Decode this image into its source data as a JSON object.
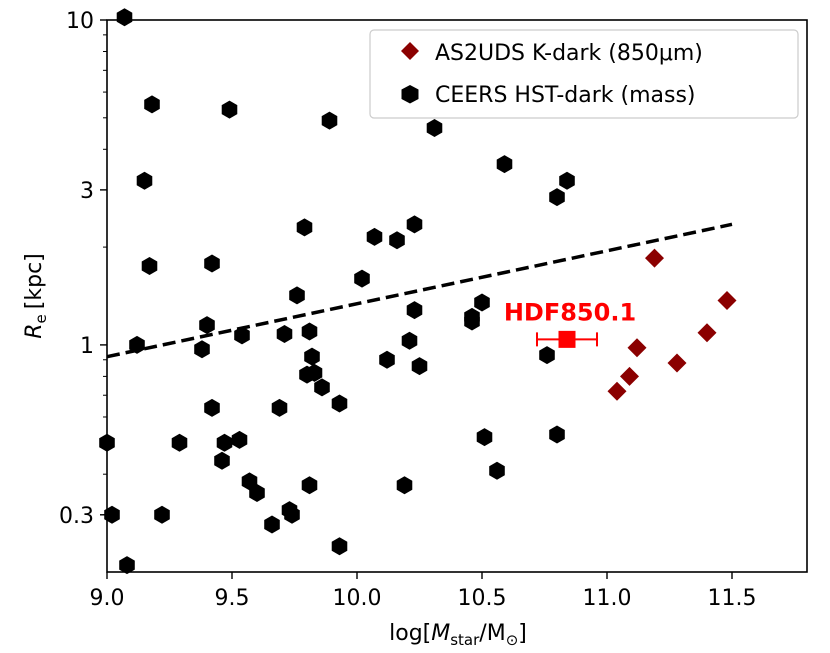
{
  "chart_data": {
    "type": "scatter",
    "title": "",
    "xlabel": {
      "prefix": "log[",
      "M": "M",
      "star": "star",
      "slash": "/M",
      "sun": "⊙",
      "suffix": "]"
    },
    "ylabel": {
      "R": "R",
      "e": "e",
      "unit": "[kpc]"
    },
    "xlim": [
      9.0,
      11.8
    ],
    "ylim": [
      0.2,
      10
    ],
    "yscale": "log",
    "xticks": [
      {
        "value": 9.0,
        "label": "9.0"
      },
      {
        "value": 9.5,
        "label": "9.5"
      },
      {
        "value": 10.0,
        "label": "10.0"
      },
      {
        "value": 10.5,
        "label": "10.5"
      },
      {
        "value": 11.0,
        "label": "11.0"
      },
      {
        "value": 11.5,
        "label": "11.5"
      }
    ],
    "yticks": [
      {
        "value": 0.3,
        "label": "0.3"
      },
      {
        "value": 1,
        "label": "1"
      },
      {
        "value": 3,
        "label": "3"
      },
      {
        "value": 10,
        "label": "10"
      }
    ],
    "legend": {
      "position": "top-right",
      "entries": [
        {
          "label": "AS2UDS K-dark (850μm)",
          "marker": "diamond",
          "color": "#8b0000"
        },
        {
          "label": "CEERS HST-dark (mass)",
          "marker": "hexagon",
          "color": "#000000"
        }
      ]
    },
    "series": [
      {
        "name": "CEERS HST-dark (mass)",
        "marker": "hexagon",
        "color": "#000000",
        "points": [
          [
            9.07,
            10.2
          ],
          [
            9.18,
            5.5
          ],
          [
            9.15,
            3.2
          ],
          [
            9.17,
            1.75
          ],
          [
            9.12,
            1.0
          ],
          [
            9.0,
            0.5
          ],
          [
            9.02,
            0.3
          ],
          [
            9.08,
            0.21
          ],
          [
            9.22,
            0.3
          ],
          [
            9.29,
            0.5
          ],
          [
            9.38,
            0.97
          ],
          [
            9.4,
            1.15
          ],
          [
            9.42,
            0.64
          ],
          [
            9.42,
            1.78
          ],
          [
            9.46,
            0.44
          ],
          [
            9.47,
            0.5
          ],
          [
            9.49,
            5.3
          ],
          [
            9.53,
            0.51
          ],
          [
            9.54,
            1.07
          ],
          [
            9.57,
            0.38
          ],
          [
            9.6,
            0.35
          ],
          [
            9.66,
            0.28
          ],
          [
            9.69,
            0.64
          ],
          [
            9.71,
            1.08
          ],
          [
            9.73,
            0.31
          ],
          [
            9.74,
            0.3
          ],
          [
            9.76,
            1.42
          ],
          [
            9.79,
            2.3
          ],
          [
            9.8,
            0.81
          ],
          [
            9.81,
            1.1
          ],
          [
            9.81,
            0.37
          ],
          [
            9.82,
            0.92
          ],
          [
            9.83,
            0.82
          ],
          [
            9.86,
            0.74
          ],
          [
            9.89,
            4.9
          ],
          [
            9.93,
            0.66
          ],
          [
            9.93,
            0.24
          ],
          [
            10.02,
            1.6
          ],
          [
            10.07,
            2.15
          ],
          [
            10.12,
            0.9
          ],
          [
            10.16,
            2.1
          ],
          [
            10.19,
            0.37
          ],
          [
            10.21,
            1.03
          ],
          [
            10.23,
            2.35
          ],
          [
            10.23,
            1.28
          ],
          [
            10.25,
            0.86
          ],
          [
            10.31,
            4.65
          ],
          [
            10.46,
            1.18
          ],
          [
            10.46,
            1.22
          ],
          [
            10.5,
            1.35
          ],
          [
            10.51,
            0.52
          ],
          [
            10.56,
            0.41
          ],
          [
            10.59,
            3.6
          ],
          [
            10.76,
            0.93
          ],
          [
            10.8,
            2.85
          ],
          [
            10.8,
            0.53
          ],
          [
            10.84,
            3.2
          ]
        ]
      },
      {
        "name": "AS2UDS K-dark (850μm)",
        "marker": "diamond",
        "color": "#8b0000",
        "points": [
          [
            11.04,
            0.72
          ],
          [
            11.09,
            0.8
          ],
          [
            11.12,
            0.98
          ],
          [
            11.19,
            1.85
          ],
          [
            11.28,
            0.88
          ],
          [
            11.4,
            1.09
          ],
          [
            11.48,
            1.37
          ]
        ]
      }
    ],
    "highlight": {
      "label": "HDF850.1",
      "x": 10.84,
      "y": 1.04,
      "xerr": 0.12,
      "color": "#ff0000"
    },
    "trend_line": {
      "style": "dashed",
      "color": "#000000",
      "x": [
        9.0,
        11.5
      ],
      "y": [
        0.92,
        2.35
      ]
    }
  }
}
